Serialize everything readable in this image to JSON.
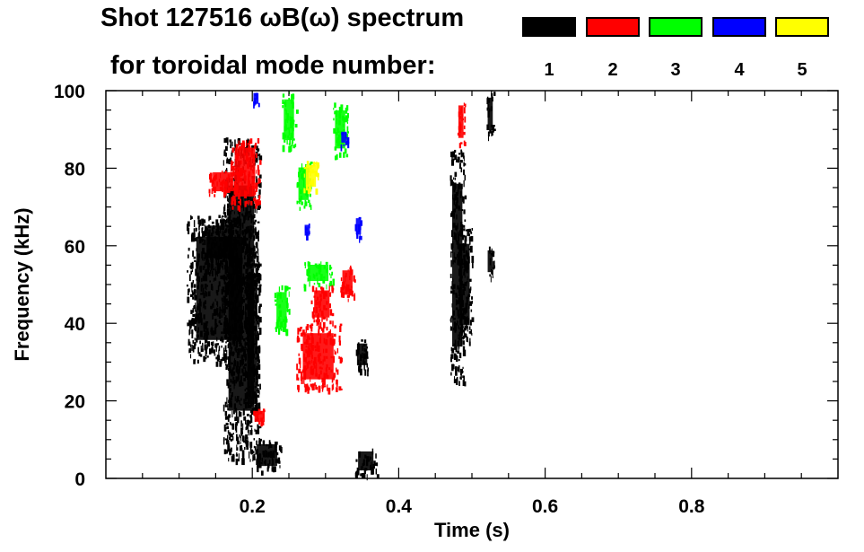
{
  "chart_data": {
    "type": "heatmap",
    "title_line1": "Shot 127516 ωB(ω) spectrum",
    "title_line2": "for toroidal mode number:",
    "xlabel": "Time (s)",
    "ylabel": "Frequency (kHz)",
    "xlim": [
      0.0,
      1.0
    ],
    "ylim": [
      0,
      100
    ],
    "x_ticks": [
      0.2,
      0.4,
      0.6,
      0.8
    ],
    "x_tick_labels": [
      "0.2",
      "0.4",
      "0.6",
      "0.8"
    ],
    "y_ticks": [
      0,
      20,
      40,
      60,
      80,
      100
    ],
    "y_tick_labels": [
      "0",
      "20",
      "40",
      "60",
      "80",
      "100"
    ],
    "grid": false,
    "legend": {
      "placement": "top-right",
      "entries": [
        {
          "label": "1",
          "color": "#000000"
        },
        {
          "label": "2",
          "color": "#ff0000"
        },
        {
          "label": "3",
          "color": "#00ff00"
        },
        {
          "label": "4",
          "color": "#0000ff"
        },
        {
          "label": "5",
          "color": "#ffff00"
        }
      ]
    },
    "series": [
      {
        "mode": "1",
        "color": "#000000",
        "regions": [
          {
            "t": [
              0.11,
              0.2
            ],
            "f": [
              30,
              68
            ]
          },
          {
            "t": [
              0.13,
              0.18
            ],
            "f": [
              55,
              67
            ]
          },
          {
            "t": [
              0.16,
              0.21
            ],
            "f": [
              5,
              88
            ]
          },
          {
            "t": [
              0.19,
              0.21
            ],
            "f": [
              12,
              60
            ]
          },
          {
            "t": [
              0.2,
              0.24
            ],
            "f": [
              2,
              10
            ]
          },
          {
            "t": [
              0.34,
              0.37
            ],
            "f": [
              1,
              8
            ]
          },
          {
            "t": [
              0.34,
              0.36
            ],
            "f": [
              28,
              36
            ]
          },
          {
            "t": [
              0.47,
              0.49
            ],
            "f": [
              25,
              85
            ]
          },
          {
            "t": [
              0.48,
              0.5
            ],
            "f": [
              35,
              65
            ]
          },
          {
            "t": [
              0.52,
              0.53
            ],
            "f": [
              88,
              100
            ]
          },
          {
            "t": [
              0.52,
              0.53
            ],
            "f": [
              52,
              60
            ]
          }
        ]
      },
      {
        "mode": "2",
        "color": "#ff0000",
        "regions": [
          {
            "t": [
              0.17,
              0.21
            ],
            "f": [
              70,
              88
            ]
          },
          {
            "t": [
              0.14,
              0.18
            ],
            "f": [
              73,
              80
            ]
          },
          {
            "t": [
              0.2,
              0.22
            ],
            "f": [
              14,
              18
            ]
          },
          {
            "t": [
              0.26,
              0.32
            ],
            "f": [
              23,
              40
            ]
          },
          {
            "t": [
              0.28,
              0.31
            ],
            "f": [
              40,
              50
            ]
          },
          {
            "t": [
              0.32,
              0.34
            ],
            "f": [
              46,
              55
            ]
          },
          {
            "t": [
              0.48,
              0.49
            ],
            "f": [
              86,
              98
            ]
          }
        ]
      },
      {
        "mode": "3",
        "color": "#00ff00",
        "regions": [
          {
            "t": [
              0.23,
              0.25
            ],
            "f": [
              37,
              50
            ]
          },
          {
            "t": [
              0.24,
              0.26
            ],
            "f": [
              85,
              100
            ]
          },
          {
            "t": [
              0.26,
              0.28
            ],
            "f": [
              70,
              82
            ]
          },
          {
            "t": [
              0.27,
              0.31
            ],
            "f": [
              50,
              56
            ]
          },
          {
            "t": [
              0.31,
              0.33
            ],
            "f": [
              83,
              97
            ]
          }
        ]
      },
      {
        "mode": "4",
        "color": "#0000ff",
        "regions": [
          {
            "t": [
              0.2,
              0.21
            ],
            "f": [
              96,
              100
            ]
          },
          {
            "t": [
              0.27,
              0.28
            ],
            "f": [
              62,
              66
            ]
          },
          {
            "t": [
              0.32,
              0.33
            ],
            "f": [
              86,
              90
            ]
          },
          {
            "t": [
              0.34,
              0.35
            ],
            "f": [
              62,
              68
            ]
          }
        ]
      },
      {
        "mode": "5",
        "color": "#ffff00",
        "regions": [
          {
            "t": [
              0.27,
              0.29
            ],
            "f": [
              74,
              82
            ]
          }
        ]
      }
    ]
  }
}
